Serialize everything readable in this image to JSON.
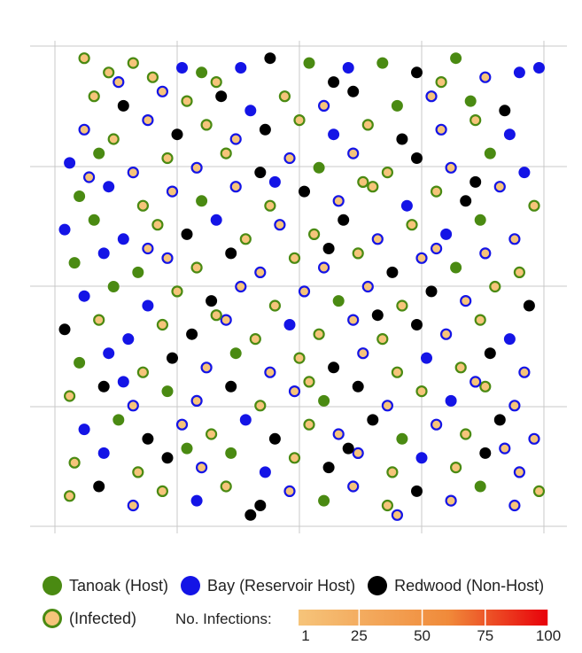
{
  "chart_data": {
    "type": "scatter",
    "title": "",
    "xlabel": "",
    "ylabel": "",
    "grid": true,
    "series": [
      {
        "name": "Tanoak (Host)",
        "key": "tanoak",
        "fill": "#4a8a12",
        "stroke": "#4a8a12"
      },
      {
        "name": "Bay (Reservoir Host)",
        "key": "bay",
        "fill": "#1414e6",
        "stroke": "#1414e6"
      },
      {
        "name": "Redwood (Non-Host)",
        "key": "redwood",
        "fill": "#000000",
        "stroke": "#000000"
      }
    ],
    "infected_style": {
      "fill": "#f6c47a",
      "tanoak_ring": "#4a8a12",
      "bay_ring": "#1414e6"
    },
    "points": [
      [
        0.06,
        0.02,
        "t",
        1
      ],
      [
        0.11,
        0.05,
        "t",
        1
      ],
      [
        0.16,
        0.03,
        "t",
        1
      ],
      [
        0.2,
        0.06,
        "t",
        1
      ],
      [
        0.26,
        0.04,
        "b",
        0
      ],
      [
        0.3,
        0.05,
        "t",
        0
      ],
      [
        0.38,
        0.04,
        "b",
        0
      ],
      [
        0.44,
        0.02,
        "r",
        0
      ],
      [
        0.52,
        0.03,
        "t",
        0
      ],
      [
        0.6,
        0.04,
        "b",
        0
      ],
      [
        0.67,
        0.03,
        "t",
        0
      ],
      [
        0.74,
        0.05,
        "r",
        0
      ],
      [
        0.82,
        0.02,
        "t",
        0
      ],
      [
        0.88,
        0.06,
        "b",
        1
      ],
      [
        0.95,
        0.05,
        "b",
        0
      ],
      [
        0.99,
        0.04,
        "b",
        0
      ],
      [
        0.08,
        0.1,
        "t",
        1
      ],
      [
        0.14,
        0.12,
        "r",
        0
      ],
      [
        0.22,
        0.09,
        "b",
        1
      ],
      [
        0.27,
        0.11,
        "t",
        1
      ],
      [
        0.34,
        0.1,
        "r",
        0
      ],
      [
        0.4,
        0.13,
        "b",
        0
      ],
      [
        0.47,
        0.1,
        "t",
        1
      ],
      [
        0.55,
        0.12,
        "b",
        1
      ],
      [
        0.61,
        0.09,
        "r",
        0
      ],
      [
        0.7,
        0.12,
        "t",
        0
      ],
      [
        0.77,
        0.1,
        "b",
        1
      ],
      [
        0.85,
        0.11,
        "t",
        0
      ],
      [
        0.92,
        0.13,
        "r",
        0
      ],
      [
        0.06,
        0.17,
        "b",
        1
      ],
      [
        0.12,
        0.19,
        "t",
        1
      ],
      [
        0.19,
        0.15,
        "b",
        1
      ],
      [
        0.25,
        0.18,
        "r",
        0
      ],
      [
        0.31,
        0.16,
        "t",
        1
      ],
      [
        0.37,
        0.19,
        "b",
        1
      ],
      [
        0.43,
        0.17,
        "r",
        0
      ],
      [
        0.5,
        0.15,
        "t",
        1
      ],
      [
        0.57,
        0.18,
        "b",
        0
      ],
      [
        0.64,
        0.16,
        "t",
        1
      ],
      [
        0.71,
        0.19,
        "r",
        0
      ],
      [
        0.79,
        0.17,
        "b",
        1
      ],
      [
        0.86,
        0.15,
        "t",
        1
      ],
      [
        0.93,
        0.18,
        "b",
        0
      ],
      [
        0.03,
        0.24,
        "b",
        0
      ],
      [
        0.09,
        0.22,
        "t",
        0
      ],
      [
        0.16,
        0.26,
        "b",
        1
      ],
      [
        0.23,
        0.23,
        "t",
        1
      ],
      [
        0.29,
        0.25,
        "b",
        1
      ],
      [
        0.35,
        0.22,
        "t",
        1
      ],
      [
        0.42,
        0.26,
        "r",
        0
      ],
      [
        0.48,
        0.23,
        "b",
        1
      ],
      [
        0.54,
        0.25,
        "t",
        0
      ],
      [
        0.61,
        0.22,
        "b",
        1
      ],
      [
        0.68,
        0.26,
        "t",
        1
      ],
      [
        0.74,
        0.23,
        "r",
        0
      ],
      [
        0.81,
        0.25,
        "b",
        1
      ],
      [
        0.89,
        0.22,
        "t",
        0
      ],
      [
        0.96,
        0.26,
        "b",
        0
      ],
      [
        0.05,
        0.31,
        "t",
        0
      ],
      [
        0.11,
        0.29,
        "b",
        0
      ],
      [
        0.18,
        0.33,
        "t",
        1
      ],
      [
        0.24,
        0.3,
        "b",
        1
      ],
      [
        0.3,
        0.32,
        "t",
        0
      ],
      [
        0.37,
        0.29,
        "b",
        1
      ],
      [
        0.44,
        0.33,
        "t",
        1
      ],
      [
        0.51,
        0.3,
        "r",
        0
      ],
      [
        0.58,
        0.32,
        "b",
        1
      ],
      [
        0.65,
        0.29,
        "t",
        1
      ],
      [
        0.72,
        0.33,
        "b",
        0
      ],
      [
        0.78,
        0.3,
        "t",
        1
      ],
      [
        0.84,
        0.32,
        "r",
        0
      ],
      [
        0.91,
        0.29,
        "b",
        1
      ],
      [
        0.98,
        0.33,
        "t",
        1
      ],
      [
        0.02,
        0.38,
        "b",
        0
      ],
      [
        0.08,
        0.36,
        "t",
        0
      ],
      [
        0.14,
        0.4,
        "b",
        0
      ],
      [
        0.21,
        0.37,
        "t",
        1
      ],
      [
        0.27,
        0.39,
        "r",
        0
      ],
      [
        0.33,
        0.36,
        "b",
        0
      ],
      [
        0.39,
        0.4,
        "t",
        1
      ],
      [
        0.46,
        0.37,
        "b",
        1
      ],
      [
        0.53,
        0.39,
        "t",
        1
      ],
      [
        0.59,
        0.36,
        "r",
        0
      ],
      [
        0.66,
        0.4,
        "b",
        1
      ],
      [
        0.73,
        0.37,
        "t",
        1
      ],
      [
        0.8,
        0.39,
        "b",
        0
      ],
      [
        0.87,
        0.36,
        "t",
        0
      ],
      [
        0.94,
        0.4,
        "b",
        1
      ],
      [
        0.04,
        0.45,
        "t",
        0
      ],
      [
        0.1,
        0.43,
        "b",
        0
      ],
      [
        0.17,
        0.47,
        "t",
        0
      ],
      [
        0.23,
        0.44,
        "b",
        1
      ],
      [
        0.29,
        0.46,
        "t",
        1
      ],
      [
        0.36,
        0.43,
        "r",
        0
      ],
      [
        0.42,
        0.47,
        "b",
        1
      ],
      [
        0.49,
        0.44,
        "t",
        1
      ],
      [
        0.55,
        0.46,
        "b",
        1
      ],
      [
        0.62,
        0.43,
        "t",
        1
      ],
      [
        0.69,
        0.47,
        "r",
        0
      ],
      [
        0.75,
        0.44,
        "b",
        1
      ],
      [
        0.82,
        0.46,
        "t",
        0
      ],
      [
        0.88,
        0.43,
        "b",
        1
      ],
      [
        0.95,
        0.47,
        "t",
        1
      ],
      [
        0.06,
        0.52,
        "b",
        0
      ],
      [
        0.12,
        0.5,
        "t",
        0
      ],
      [
        0.19,
        0.54,
        "b",
        0
      ],
      [
        0.25,
        0.51,
        "t",
        1
      ],
      [
        0.32,
        0.53,
        "r",
        0
      ],
      [
        0.38,
        0.5,
        "b",
        1
      ],
      [
        0.45,
        0.54,
        "t",
        1
      ],
      [
        0.51,
        0.51,
        "b",
        1
      ],
      [
        0.58,
        0.53,
        "t",
        0
      ],
      [
        0.64,
        0.5,
        "b",
        1
      ],
      [
        0.71,
        0.54,
        "t",
        1
      ],
      [
        0.77,
        0.51,
        "r",
        0
      ],
      [
        0.84,
        0.53,
        "b",
        1
      ],
      [
        0.9,
        0.5,
        "t",
        1
      ],
      [
        0.97,
        0.54,
        "r",
        0
      ],
      [
        0.02,
        0.59,
        "r",
        0
      ],
      [
        0.09,
        0.57,
        "t",
        1
      ],
      [
        0.15,
        0.61,
        "b",
        0
      ],
      [
        0.22,
        0.58,
        "t",
        1
      ],
      [
        0.28,
        0.6,
        "r",
        0
      ],
      [
        0.35,
        0.57,
        "b",
        1
      ],
      [
        0.41,
        0.61,
        "t",
        1
      ],
      [
        0.48,
        0.58,
        "b",
        0
      ],
      [
        0.54,
        0.6,
        "t",
        1
      ],
      [
        0.61,
        0.57,
        "b",
        1
      ],
      [
        0.67,
        0.61,
        "t",
        1
      ],
      [
        0.74,
        0.58,
        "r",
        0
      ],
      [
        0.8,
        0.6,
        "b",
        1
      ],
      [
        0.87,
        0.57,
        "t",
        1
      ],
      [
        0.93,
        0.61,
        "b",
        0
      ],
      [
        0.05,
        0.66,
        "t",
        0
      ],
      [
        0.11,
        0.64,
        "b",
        0
      ],
      [
        0.18,
        0.68,
        "t",
        1
      ],
      [
        0.24,
        0.65,
        "r",
        0
      ],
      [
        0.31,
        0.67,
        "b",
        1
      ],
      [
        0.37,
        0.64,
        "t",
        0
      ],
      [
        0.44,
        0.68,
        "b",
        1
      ],
      [
        0.5,
        0.65,
        "t",
        1
      ],
      [
        0.57,
        0.67,
        "r",
        0
      ],
      [
        0.63,
        0.64,
        "b",
        1
      ],
      [
        0.7,
        0.68,
        "t",
        1
      ],
      [
        0.76,
        0.65,
        "b",
        0
      ],
      [
        0.83,
        0.67,
        "t",
        1
      ],
      [
        0.89,
        0.64,
        "r",
        0
      ],
      [
        0.96,
        0.68,
        "b",
        1
      ],
      [
        0.03,
        0.73,
        "t",
        1
      ],
      [
        0.1,
        0.71,
        "r",
        0
      ],
      [
        0.16,
        0.75,
        "b",
        1
      ],
      [
        0.23,
        0.72,
        "t",
        0
      ],
      [
        0.29,
        0.74,
        "b",
        1
      ],
      [
        0.36,
        0.71,
        "r",
        0
      ],
      [
        0.42,
        0.75,
        "t",
        1
      ],
      [
        0.49,
        0.72,
        "b",
        1
      ],
      [
        0.55,
        0.74,
        "t",
        0
      ],
      [
        0.62,
        0.71,
        "r",
        0
      ],
      [
        0.68,
        0.75,
        "b",
        1
      ],
      [
        0.75,
        0.72,
        "t",
        1
      ],
      [
        0.81,
        0.74,
        "b",
        0
      ],
      [
        0.88,
        0.71,
        "t",
        1
      ],
      [
        0.94,
        0.75,
        "b",
        1
      ],
      [
        0.06,
        0.8,
        "b",
        0
      ],
      [
        0.13,
        0.78,
        "t",
        0
      ],
      [
        0.19,
        0.82,
        "r",
        0
      ],
      [
        0.26,
        0.79,
        "b",
        1
      ],
      [
        0.32,
        0.81,
        "t",
        1
      ],
      [
        0.39,
        0.78,
        "b",
        0
      ],
      [
        0.45,
        0.82,
        "r",
        0
      ],
      [
        0.52,
        0.79,
        "t",
        1
      ],
      [
        0.58,
        0.81,
        "b",
        1
      ],
      [
        0.65,
        0.78,
        "r",
        0
      ],
      [
        0.71,
        0.82,
        "t",
        0
      ],
      [
        0.78,
        0.79,
        "b",
        1
      ],
      [
        0.84,
        0.81,
        "t",
        1
      ],
      [
        0.91,
        0.78,
        "r",
        0
      ],
      [
        0.98,
        0.82,
        "b",
        1
      ],
      [
        0.04,
        0.87,
        "t",
        1
      ],
      [
        0.1,
        0.85,
        "b",
        0
      ],
      [
        0.17,
        0.89,
        "t",
        1
      ],
      [
        0.23,
        0.86,
        "r",
        0
      ],
      [
        0.3,
        0.88,
        "b",
        1
      ],
      [
        0.36,
        0.85,
        "t",
        0
      ],
      [
        0.43,
        0.89,
        "b",
        0
      ],
      [
        0.49,
        0.86,
        "t",
        1
      ],
      [
        0.56,
        0.88,
        "r",
        0
      ],
      [
        0.62,
        0.85,
        "b",
        1
      ],
      [
        0.69,
        0.89,
        "t",
        1
      ],
      [
        0.75,
        0.86,
        "b",
        0
      ],
      [
        0.82,
        0.88,
        "t",
        1
      ],
      [
        0.88,
        0.85,
        "r",
        0
      ],
      [
        0.95,
        0.89,
        "b",
        1
      ],
      [
        0.03,
        0.94,
        "t",
        1
      ],
      [
        0.09,
        0.92,
        "r",
        0
      ],
      [
        0.16,
        0.96,
        "b",
        1
      ],
      [
        0.22,
        0.93,
        "t",
        1
      ],
      [
        0.29,
        0.95,
        "b",
        0
      ],
      [
        0.35,
        0.92,
        "t",
        1
      ],
      [
        0.42,
        0.96,
        "r",
        0
      ],
      [
        0.48,
        0.93,
        "b",
        1
      ],
      [
        0.55,
        0.95,
        "t",
        0
      ],
      [
        0.61,
        0.92,
        "b",
        1
      ],
      [
        0.68,
        0.96,
        "t",
        1
      ],
      [
        0.74,
        0.93,
        "r",
        0
      ],
      [
        0.81,
        0.95,
        "b",
        1
      ],
      [
        0.87,
        0.92,
        "t",
        0
      ],
      [
        0.94,
        0.96,
        "b",
        1
      ],
      [
        0.99,
        0.93,
        "t",
        1
      ],
      [
        0.13,
        0.07,
        "b",
        1
      ],
      [
        0.33,
        0.07,
        "t",
        1
      ],
      [
        0.57,
        0.07,
        "r",
        0
      ],
      [
        0.79,
        0.07,
        "t",
        1
      ],
      [
        0.07,
        0.27,
        "b",
        1
      ],
      [
        0.45,
        0.28,
        "b",
        0
      ],
      [
        0.63,
        0.28,
        "t",
        1
      ],
      [
        0.86,
        0.28,
        "r",
        0
      ],
      [
        0.19,
        0.42,
        "b",
        1
      ],
      [
        0.56,
        0.42,
        "r",
        0
      ],
      [
        0.78,
        0.42,
        "b",
        1
      ],
      [
        0.33,
        0.56,
        "t",
        1
      ],
      [
        0.66,
        0.56,
        "r",
        0
      ],
      [
        0.14,
        0.7,
        "b",
        0
      ],
      [
        0.52,
        0.7,
        "t",
        1
      ],
      [
        0.86,
        0.7,
        "b",
        1
      ],
      [
        0.27,
        0.84,
        "t",
        0
      ],
      [
        0.6,
        0.84,
        "r",
        0
      ],
      [
        0.92,
        0.84,
        "b",
        1
      ],
      [
        0.4,
        0.98,
        "r",
        0
      ],
      [
        0.7,
        0.98,
        "b",
        1
      ]
    ]
  },
  "legend": {
    "tanoak_label": "Tanoak (Host)",
    "bay_label": "Bay (Reservoir Host)",
    "redwood_label": "Redwood (Non-Host)",
    "infected_label": "(Infected)"
  },
  "scale": {
    "title": "No. Infections:",
    "min": 1,
    "max": 100,
    "ticks": [
      "1",
      "25",
      "50",
      "75",
      "100"
    ],
    "tick_values": [
      1,
      25,
      50,
      75,
      100
    ],
    "color_low": "#f6c47a",
    "color_high": "#e8000a"
  }
}
